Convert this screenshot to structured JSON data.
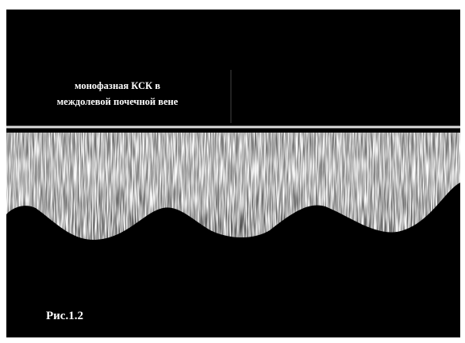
{
  "caption": {
    "lines": [
      "монофазная КСК в",
      "междолевой почечной вене"
    ]
  },
  "figure_label": "Рис.1.2"
}
